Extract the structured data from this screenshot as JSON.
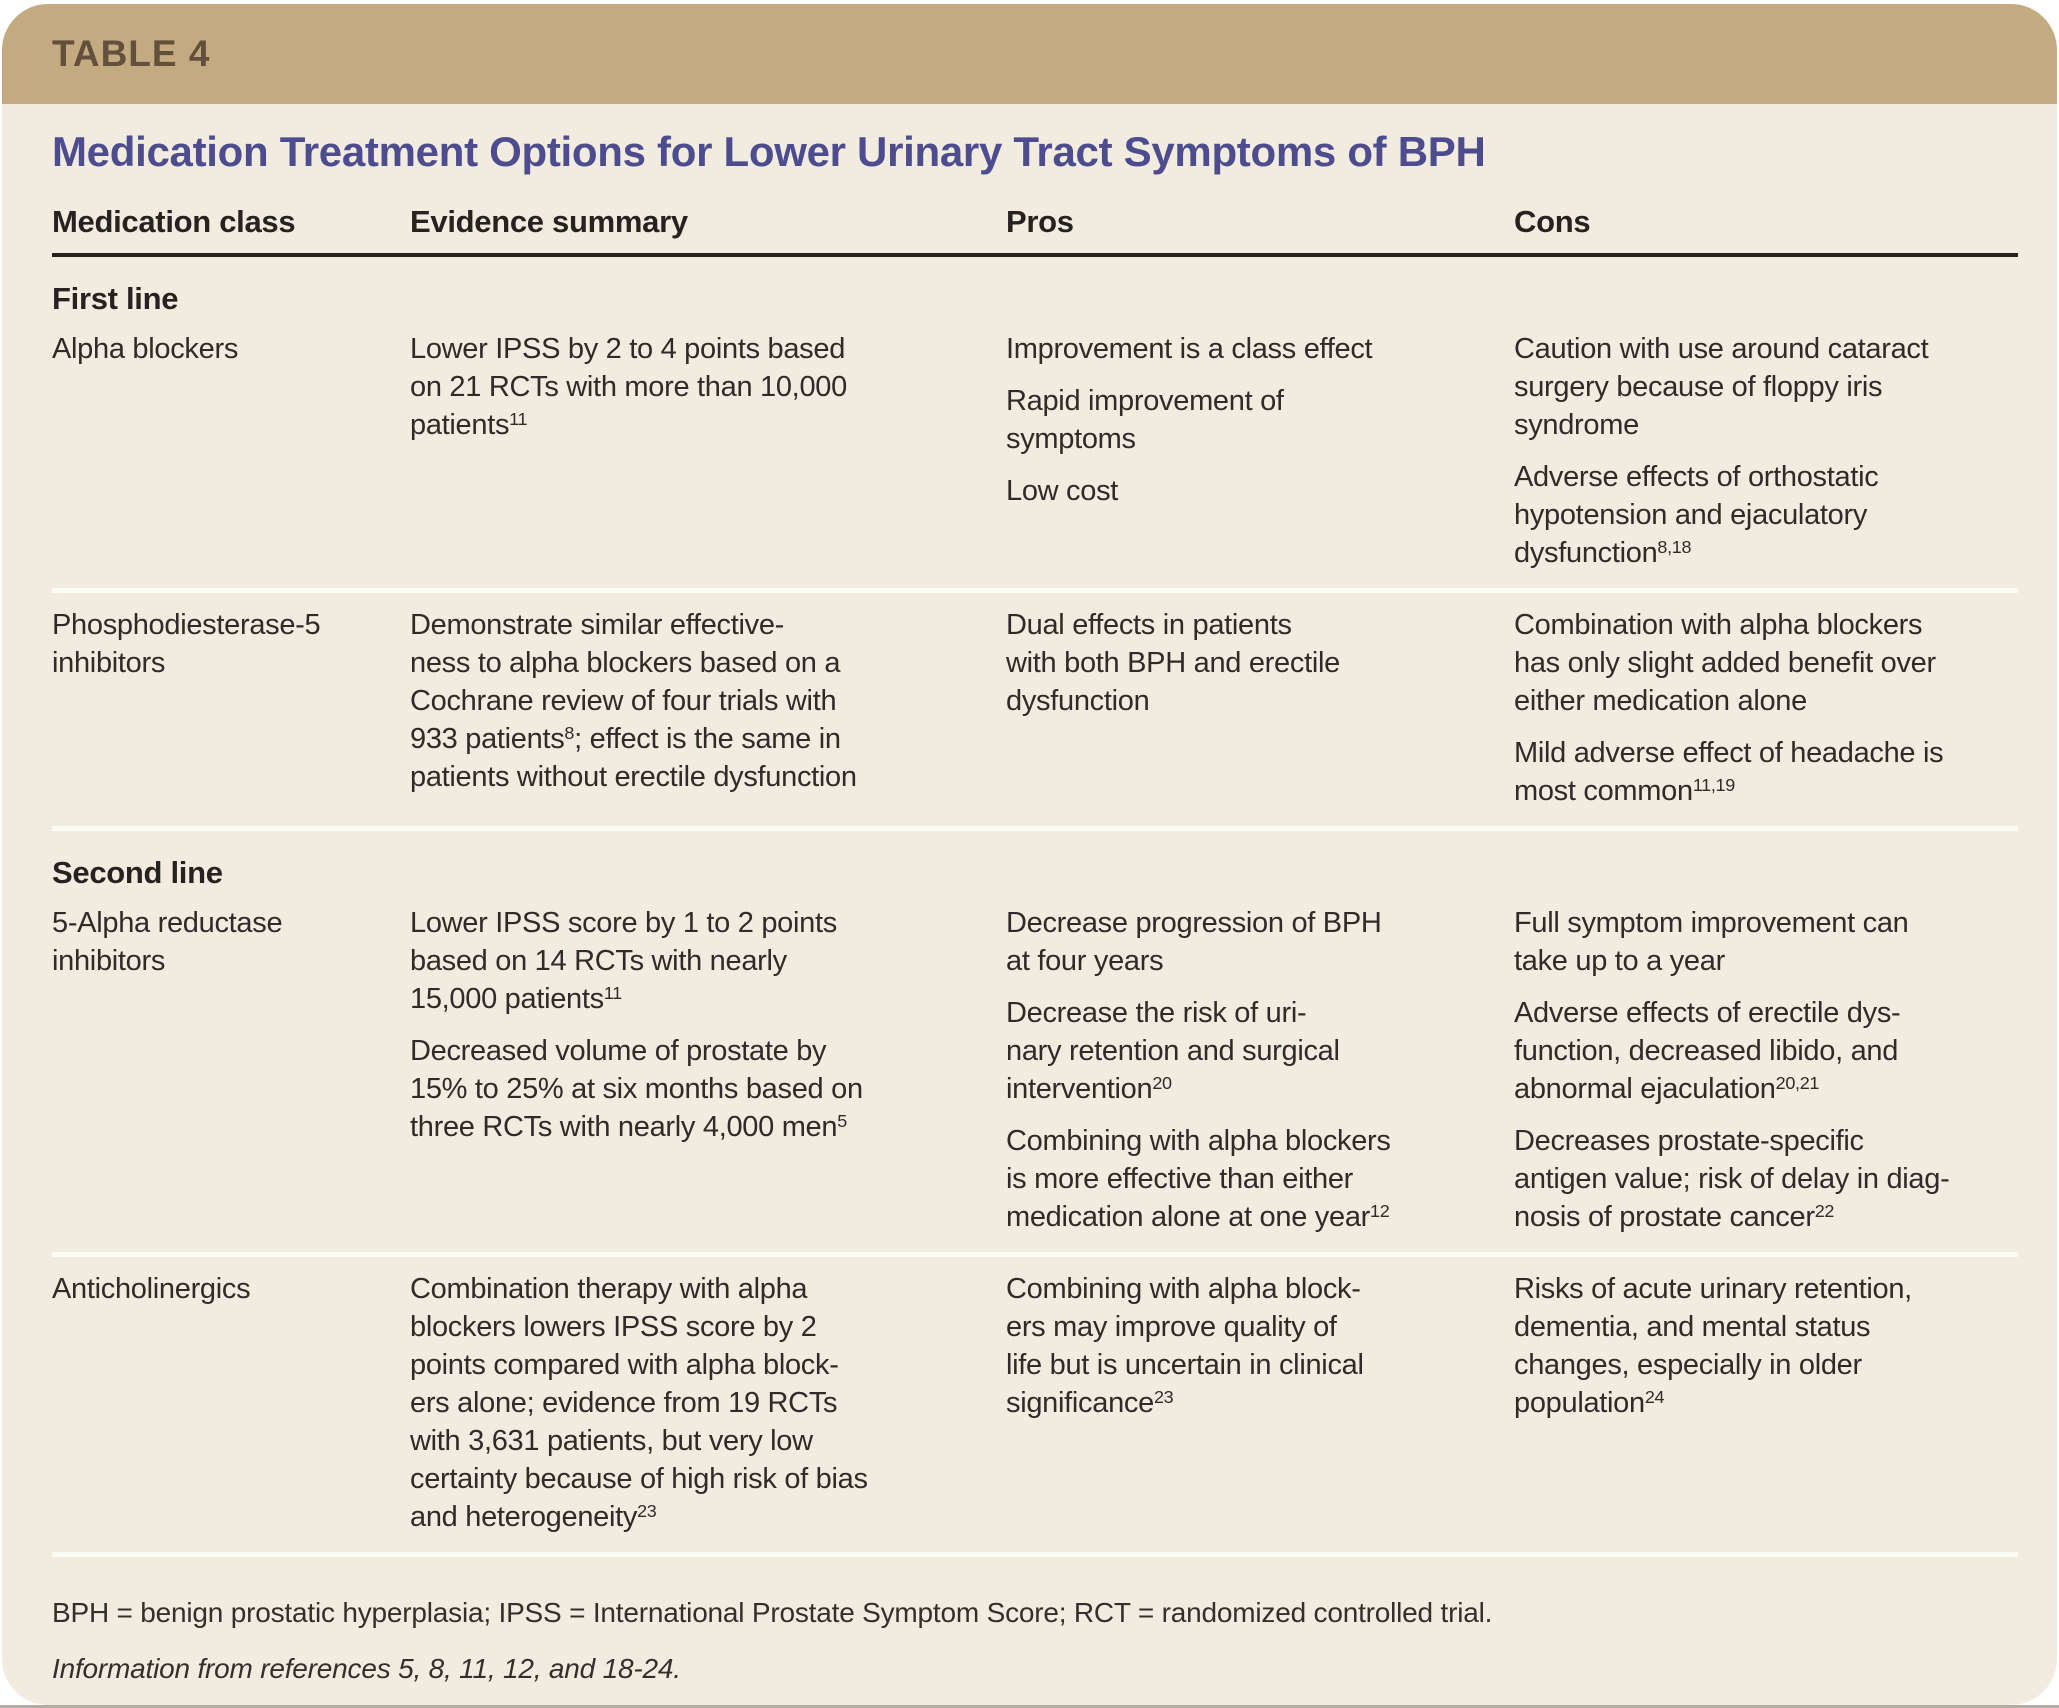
{
  "table_label": "TABLE 4",
  "title": "Medication Treatment Options for Lower Urinary Tract Symptoms of BPH",
  "columns": [
    "Medication class",
    "Evidence summary",
    "Pros",
    "Cons"
  ],
  "sections": [
    {
      "label": "First line",
      "rows": [
        {
          "medication_class": "Alpha blockers",
          "evidence_summary": [
            "Lower IPSS by 2 to 4 points based\non 21 RCTs with more than 10,000\npatients^{11}"
          ],
          "pros": [
            "Improvement is a class effect",
            "Rapid improvement of\nsymptoms",
            "Low cost"
          ],
          "cons": [
            "Caution with use around cataract\nsurgery because of floppy iris\nsyndrome",
            "Adverse effects of orthostatic\nhypotension and ejaculatory\ndysfunction^{8,18}"
          ]
        },
        {
          "medication_class": "Phosphodiesterase-5\ninhibitors",
          "evidence_summary": [
            "Demonstrate similar effective-\nness to alpha blockers based on a\nCochrane review of four trials with\n933 patients^{8}; effect is the same in\npatients without erectile dysfunction"
          ],
          "pros": [
            "Dual effects in patients\nwith both BPH and erectile\ndysfunction"
          ],
          "cons": [
            "Combination with alpha blockers\nhas only slight added benefit over\neither medication alone",
            "Mild adverse effect of headache is\nmost common^{11,19}"
          ]
        }
      ]
    },
    {
      "label": "Second line",
      "rows": [
        {
          "medication_class": "5-Alpha reductase\ninhibitors",
          "evidence_summary": [
            "Lower IPSS score by 1 to 2 points\nbased on 14 RCTs with nearly\n15,000 patients^{11}",
            "Decreased volume of prostate by\n15% to 25% at six months based on\nthree RCTs with nearly 4,000 men^{5}"
          ],
          "pros": [
            "Decrease progression of BPH\nat four years",
            "Decrease the risk of uri-\nnary retention and surgical\nintervention^{20}",
            "Combining with alpha blockers\nis more effective than either\nmedication alone at one year^{12}"
          ],
          "cons": [
            "Full symptom improvement can\ntake up to a year",
            "Adverse effects of erectile dys-\nfunction, decreased libido, and\nabnormal ejaculation^{20,21}",
            "Decreases prostate-specific\nantigen value; risk of delay in diag-\nnosis of prostate cancer^{22}"
          ]
        },
        {
          "medication_class": "Anticholinergics",
          "evidence_summary": [
            "Combination therapy with alpha\nblockers lowers IPSS score by 2\npoints compared with alpha block-\ners alone; evidence from 19 RCTs\nwith 3,631 patients, but very low\ncertainty because of high risk of bias\nand heterogeneity^{23}"
          ],
          "pros": [
            "Combining with alpha block-\ners may improve quality of\nlife but is uncertain in clinical\nsignificance^{23}"
          ],
          "cons": [
            "Risks of acute urinary retention,\ndementia, and mental status\nchanges, especially in older\npopulation^{24}"
          ]
        }
      ]
    }
  ],
  "footnotes": {
    "abbreviations": "BPH = benign prostatic hyperplasia; IPSS = International Prostate Symptom Score; RCT = randomized controlled trial.",
    "source": "Information from references 5, 8, 11, 12, and 18-24."
  },
  "colors": {
    "header_bar": "#c4aa80",
    "header_label": "#63503c",
    "card_background": "#f1ecdf",
    "title": "#4d4c8f",
    "body_text": "#2e2b28",
    "header_rule": "#262220",
    "row_separator": "#fcfaf4"
  }
}
